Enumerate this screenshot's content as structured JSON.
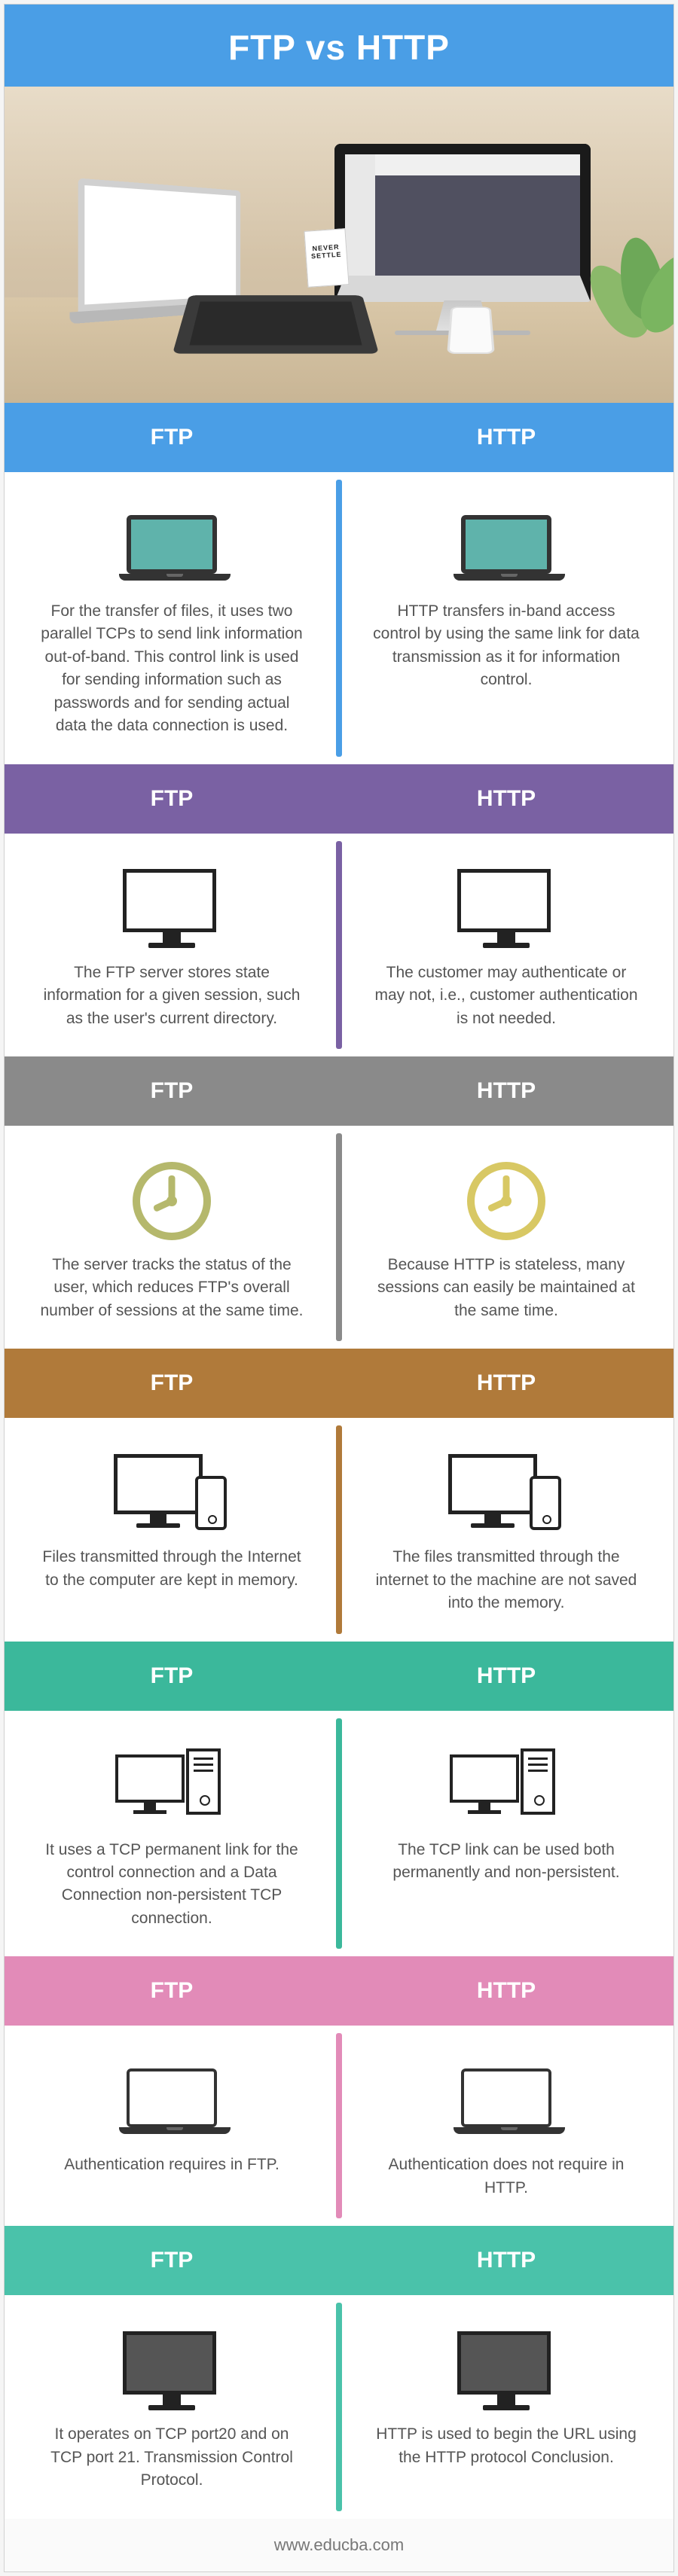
{
  "title": "FTP vs HTTP",
  "footer": "www.educba.com",
  "labels": {
    "left": "FTP",
    "right": "HTTP"
  },
  "sections": [
    {
      "header_bg": "#4a9ee6",
      "divider_bg": "#4a9ee6",
      "icon": "laptop-teal",
      "ftp": "For the transfer of files, it uses two parallel TCPs to send link information out-of-band. This control link is used for sending information such as passwords and for sending actual data the data connection is used.",
      "http": "HTTP transfers in-band access control by using the same link for data transmission as it for information control."
    },
    {
      "header_bg": "#7a61a3",
      "divider_bg": "#7a61a3",
      "icon": "monitor",
      "ftp": "The FTP server stores state information for a given session, such as the user's current directory.",
      "http": "The customer may authenticate or may not, i.e., customer authentication is not needed."
    },
    {
      "header_bg": "#8a8a8a",
      "divider_bg": "#8a8a8a",
      "icon": "clock",
      "ftp": "The server tracks the status of the user, which reduces FTP's overall number of sessions at the same time.",
      "http": "Because HTTP is stateless, many sessions can easily be maintained at the same time."
    },
    {
      "header_bg": "#b07a3a",
      "divider_bg": "#b07a3a",
      "icon": "devices",
      "ftp": "Files transmitted through the Internet to the computer are kept in memory.",
      "http": "The files transmitted through the internet to the machine are not saved into the memory."
    },
    {
      "header_bg": "#3bb89b",
      "divider_bg": "#3bb89b",
      "icon": "server",
      "ftp": "It uses a TCP permanent link for the control connection and a Data Connection non-persistent TCP connection.",
      "http": "The TCP link can be used both permanently and non-persistent."
    },
    {
      "header_bg": "#e28bb8",
      "divider_bg": "#e28bb8",
      "icon": "laptop-white",
      "ftp": "Authentication requires in FTP.",
      "http": "Authentication does not require in HTTP."
    },
    {
      "header_bg": "#4ac2aa",
      "divider_bg": "#4ac2aa",
      "icon": "monitor-grey",
      "ftp": "It operates on TCP port20 and on TCP port 21. Transmission Control Protocol.",
      "http": "HTTP is used to begin the URL using the HTTP protocol Conclusion."
    }
  ]
}
